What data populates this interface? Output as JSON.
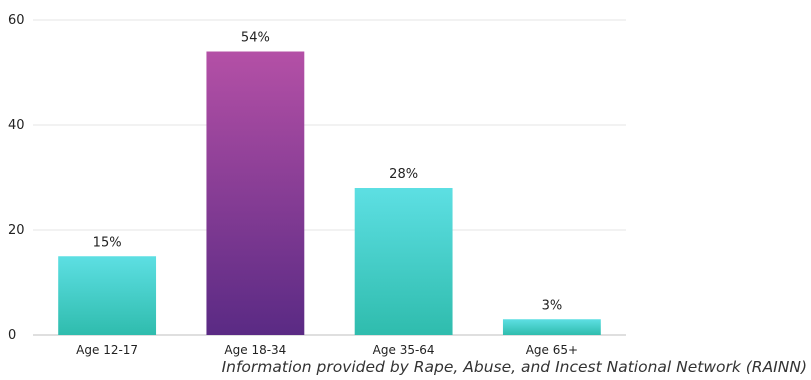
{
  "chart_data": {
    "type": "bar",
    "categories": [
      "Age 12-17",
      "Age 18-34",
      "Age 35-64",
      "Age 65+"
    ],
    "values": [
      15,
      54,
      28,
      3
    ],
    "data_labels": [
      "15%",
      "54%",
      "28%",
      "3%"
    ],
    "title": "",
    "xlabel": "",
    "ylabel": "",
    "ylim": [
      0,
      60
    ],
    "yticks": [
      "0",
      "20",
      "40",
      "60"
    ],
    "grid": true,
    "legend": "none"
  },
  "colors": {
    "teal_top": "#5ddfe3",
    "teal_bottom": "#2fbcad",
    "purple_top": "#b450a6",
    "purple_bottom": "#5a2a84"
  },
  "source_text": "Information provided by Rape, Abuse, and Incest National Network (RAINN)"
}
